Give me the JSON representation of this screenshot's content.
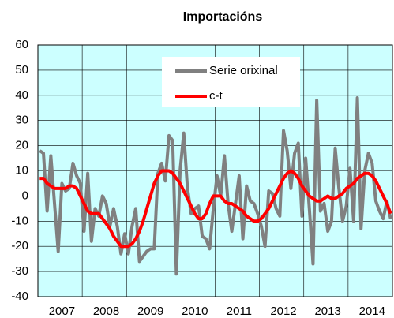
{
  "chart_data": {
    "type": "line",
    "title": "Importacións",
    "categories": [
      null,
      null,
      null,
      null,
      null,
      null,
      "2007",
      null,
      null,
      null,
      null,
      null,
      null,
      null,
      null,
      null,
      null,
      null,
      "2008",
      null,
      null,
      null,
      null,
      null,
      null,
      null,
      null,
      null,
      null,
      null,
      "2009",
      null,
      null,
      null,
      null,
      null,
      null,
      null,
      null,
      null,
      null,
      null,
      "2010",
      null,
      null,
      null,
      null,
      null,
      null,
      null,
      null,
      null,
      null,
      null,
      "2011",
      null,
      null,
      null,
      null,
      null,
      null,
      null,
      null,
      null,
      null,
      null,
      "2012",
      null,
      null,
      null,
      null,
      null,
      null,
      null,
      null,
      null,
      null,
      null,
      "2013",
      null,
      null,
      null,
      null,
      null,
      null,
      null,
      null,
      null,
      null,
      null,
      "2014",
      null,
      null,
      null,
      null,
      null
    ],
    "series": [
      {
        "name": "Serie orixinal",
        "color": "#808080",
        "values": [
          18,
          17,
          -6,
          16,
          -3,
          -22,
          5,
          2,
          3,
          13,
          8,
          5,
          -14,
          9,
          -18,
          -5,
          -8,
          0,
          -3,
          -12,
          -5,
          -12,
          -23,
          -15,
          -23,
          -12,
          -5,
          -26,
          -24,
          -22,
          -21,
          -21,
          9,
          13,
          6,
          24,
          22,
          -31,
          10,
          25,
          3,
          -7,
          -5,
          -4,
          -16,
          -17,
          -21,
          -5,
          8,
          0,
          16,
          -3,
          -14,
          -3,
          8,
          -17,
          4,
          -2,
          -3,
          -7,
          -12,
          -20,
          2,
          1,
          -5,
          -8,
          26,
          18,
          3,
          17,
          21,
          -8,
          15,
          -5,
          -27,
          38,
          -6,
          -3,
          -14,
          -10,
          19,
          3,
          -10,
          -4,
          11,
          -10,
          39,
          -13,
          10,
          17,
          13,
          -2,
          -6,
          -9,
          -2,
          -9
        ]
      },
      {
        "name": "c-t",
        "color": "#ff0000",
        "values": [
          7,
          7,
          5,
          4,
          3,
          3,
          3,
          3,
          4,
          4,
          3,
          0,
          -3,
          -6,
          -7,
          -7,
          -7,
          -9,
          -11,
          -13,
          -16,
          -18,
          -20,
          -20,
          -20,
          -19,
          -17,
          -14,
          -10,
          -5,
          0,
          5,
          8,
          10,
          10,
          10,
          9,
          7,
          5,
          2,
          -1,
          -4,
          -7,
          -9,
          -9,
          -7,
          -3,
          0,
          0,
          0,
          -2,
          -3,
          -3,
          -4,
          -5,
          -6,
          -8,
          -9,
          -10,
          -10,
          -9,
          -7,
          -5,
          -2,
          1,
          4,
          7,
          9,
          10,
          9,
          7,
          4,
          2,
          0,
          -1,
          -2,
          -2,
          -1,
          0,
          -1,
          -1,
          0,
          1,
          3,
          4,
          5,
          7,
          8,
          9,
          9,
          8,
          6,
          3,
          0,
          -3,
          -7
        ]
      }
    ],
    "ylim": [
      -40,
      60
    ],
    "yticks": [
      -40,
      -30,
      -20,
      -10,
      0,
      10,
      20,
      30,
      40,
      50,
      60
    ],
    "grid": true,
    "background": "#ccffff"
  }
}
